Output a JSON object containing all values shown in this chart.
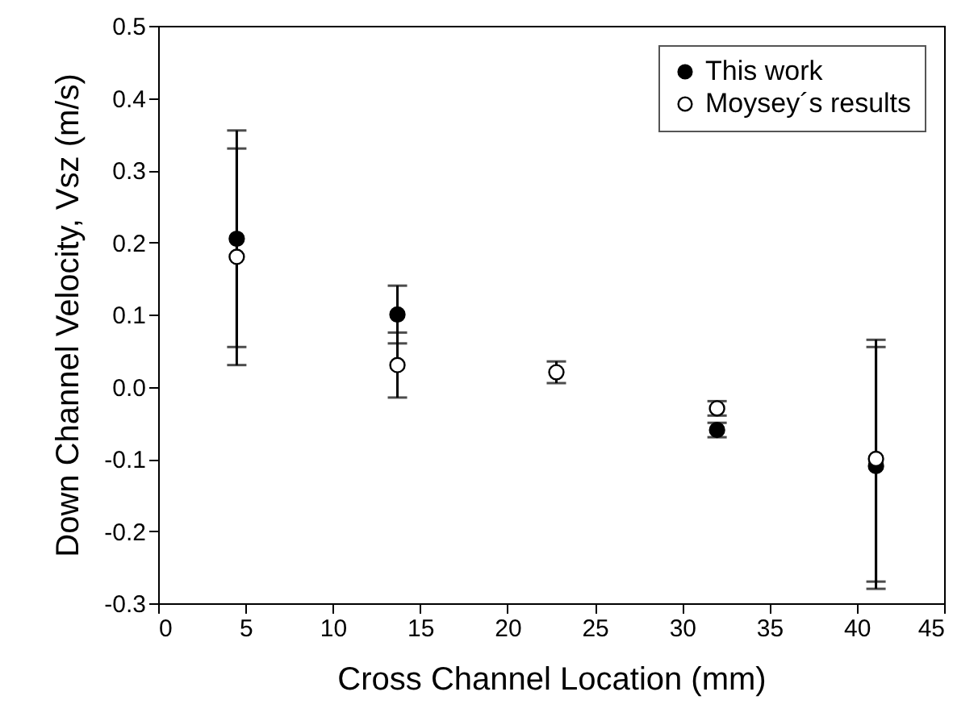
{
  "chart_data": {
    "type": "scatter",
    "xlabel": "Cross Channel Location (mm)",
    "ylabel": "Down Channel Velocity, Vsz (m/s)",
    "x": [
      4.5,
      13.7,
      22.8,
      32,
      41.1
    ],
    "xlim": [
      0,
      45
    ],
    "xticks": [
      0,
      5,
      10,
      15,
      20,
      25,
      30,
      35,
      40,
      45
    ],
    "ylim": [
      -0.3,
      0.5
    ],
    "yticks": [
      -0.3,
      -0.2,
      -0.1,
      {
        "value": 0,
        "label": "0.0"
      },
      0.1,
      0.2,
      0.3,
      0.4,
      0.5
    ],
    "legend": "top right",
    "marker": "circle",
    "grid": false,
    "series": [
      {
        "name": "This work",
        "color": "#000000",
        "values": [
          0.205,
          0.1,
          null,
          -0.06,
          -0.11
        ],
        "errors": [
          [
            0.055,
            0.355
          ],
          [
            0.06,
            0.14
          ],
          null,
          [
            -0.07,
            -0.05
          ],
          [
            -0.28,
            0.055
          ]
        ]
      },
      {
        "name": "Moysey´s results",
        "color": "#000000",
        "values": [
          0.18,
          0.03,
          0.02,
          -0.03,
          -0.1
        ],
        "errors": [
          [
            0.03,
            0.33
          ],
          [
            -0.015,
            0.075
          ],
          [
            0.005,
            0.035
          ],
          [
            -0.04,
            -0.02
          ],
          [
            -0.27,
            0.065
          ]
        ]
      }
    ]
  }
}
